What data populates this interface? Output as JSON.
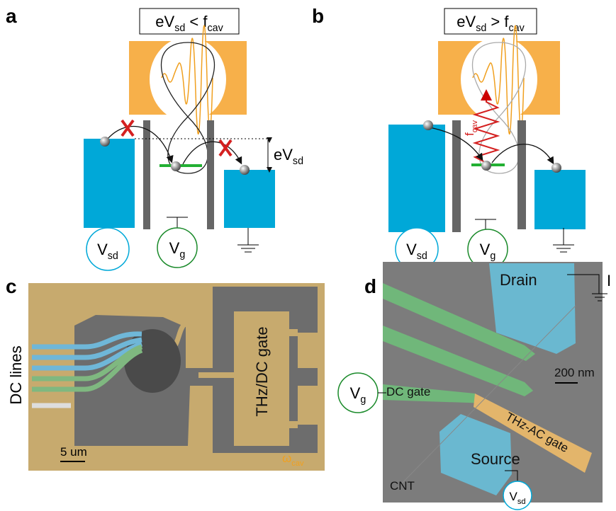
{
  "panels": {
    "a": {
      "label": "a",
      "condition": [
        {
          "text": "eV"
        },
        {
          "text": "sd",
          "sub": true
        },
        {
          "text": " < f"
        },
        {
          "text": "cav",
          "sub": true
        }
      ],
      "bias": [
        {
          "text": "eV"
        },
        {
          "text": "sd",
          "sub": true
        }
      ],
      "source_voltage": [
        {
          "text": "V"
        },
        {
          "text": "sd",
          "sub": true
        }
      ],
      "gate_voltage": [
        {
          "text": "V"
        },
        {
          "text": "g",
          "sub": true
        }
      ]
    },
    "b": {
      "label": "b",
      "condition": [
        {
          "text": "eV"
        },
        {
          "text": "sd",
          "sub": true
        },
        {
          "text": " > f"
        },
        {
          "text": "cav",
          "sub": true
        }
      ],
      "photon": [
        {
          "text": "f"
        },
        {
          "text": "cav",
          "sub": true
        }
      ],
      "source_voltage": [
        {
          "text": "V"
        },
        {
          "text": "sd",
          "sub": true
        }
      ],
      "gate_voltage": [
        {
          "text": "V"
        },
        {
          "text": "g",
          "sub": true
        }
      ]
    },
    "c": {
      "label": "c",
      "lines": "DC lines",
      "gate": "THz/DC gate",
      "cavity": [
        {
          "text": "ω"
        },
        {
          "text": "cav",
          "sub": true
        }
      ],
      "scale_bar": "5 um"
    },
    "d": {
      "label": "d",
      "drain": "Drain",
      "current": "I",
      "scale_bar": "200 nm",
      "gate_voltage": [
        {
          "text": "V"
        },
        {
          "text": "g",
          "sub": true
        }
      ],
      "dc_gate": "DC gate",
      "ac_gate": "THz-AC gate",
      "nanotube": "CNT",
      "source": "Source",
      "source_voltage": [
        {
          "text": "V"
        },
        {
          "text": "sd",
          "sub": true
        }
      ]
    }
  }
}
